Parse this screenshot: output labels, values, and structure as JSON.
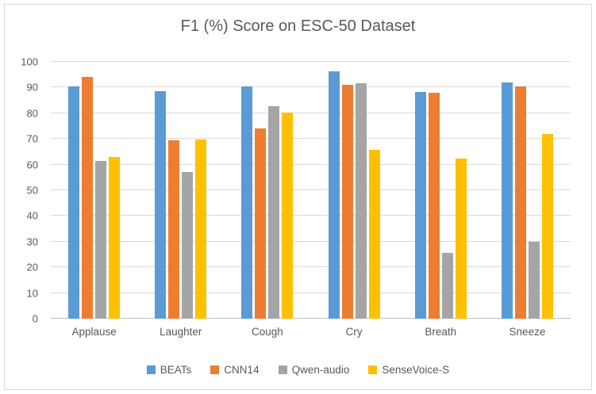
{
  "chart_data": {
    "type": "bar",
    "title": "F1 (%) Score on ESC-50 Dataset",
    "categories": [
      "Applause",
      "Laughter",
      "Cough",
      "Cry",
      "Breath",
      "Sneeze"
    ],
    "series": [
      {
        "name": "BEATs",
        "color": "#5B9BD5",
        "values": [
          90.5,
          88.5,
          90.5,
          96.3,
          88.2,
          92.0
        ]
      },
      {
        "name": "CNN14",
        "color": "#ED7D31",
        "values": [
          94.0,
          69.5,
          74.2,
          91.0,
          87.9,
          90.4
        ]
      },
      {
        "name": "Qwen-audio",
        "color": "#A5A5A5",
        "values": [
          61.5,
          57.0,
          82.6,
          91.6,
          25.6,
          30.0
        ]
      },
      {
        "name": "SenseVoice-S",
        "color": "#FFC000",
        "values": [
          63.0,
          69.7,
          80.4,
          65.6,
          62.5,
          71.9
        ]
      }
    ],
    "xlabel": "",
    "ylabel": "",
    "ylim": [
      0,
      100
    ],
    "ytick_step": 10,
    "grid": true,
    "legend_position": "bottom"
  }
}
